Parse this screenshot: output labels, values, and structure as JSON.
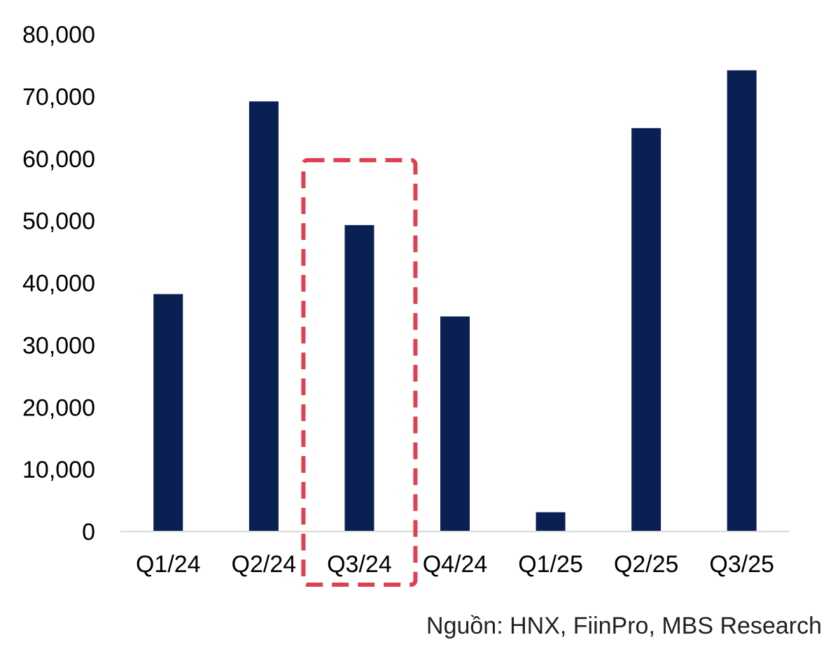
{
  "chart_data": {
    "type": "bar",
    "categories": [
      "Q1/24",
      "Q2/24",
      "Q3/24",
      "Q4/24",
      "Q1/25",
      "Q2/25",
      "Q3/25"
    ],
    "values": [
      38200,
      69200,
      49300,
      34600,
      3100,
      64900,
      74200
    ],
    "title": "",
    "xlabel": "",
    "ylabel": "",
    "ylim": [
      0,
      80000
    ],
    "yticks": [
      "0",
      "10,000",
      "20,000",
      "30,000",
      "40,000",
      "50,000",
      "60,000",
      "70,000",
      "80,000"
    ],
    "grid": false,
    "legend": "none",
    "highlight": {
      "category": "Q3/24",
      "style": "dashed-box"
    },
    "colors": {
      "bar": "#0a1f52",
      "highlight": "#de4152",
      "axis": "#d9d9d9"
    }
  },
  "source": "Nguồn: HNX, FiinPro, MBS Research"
}
